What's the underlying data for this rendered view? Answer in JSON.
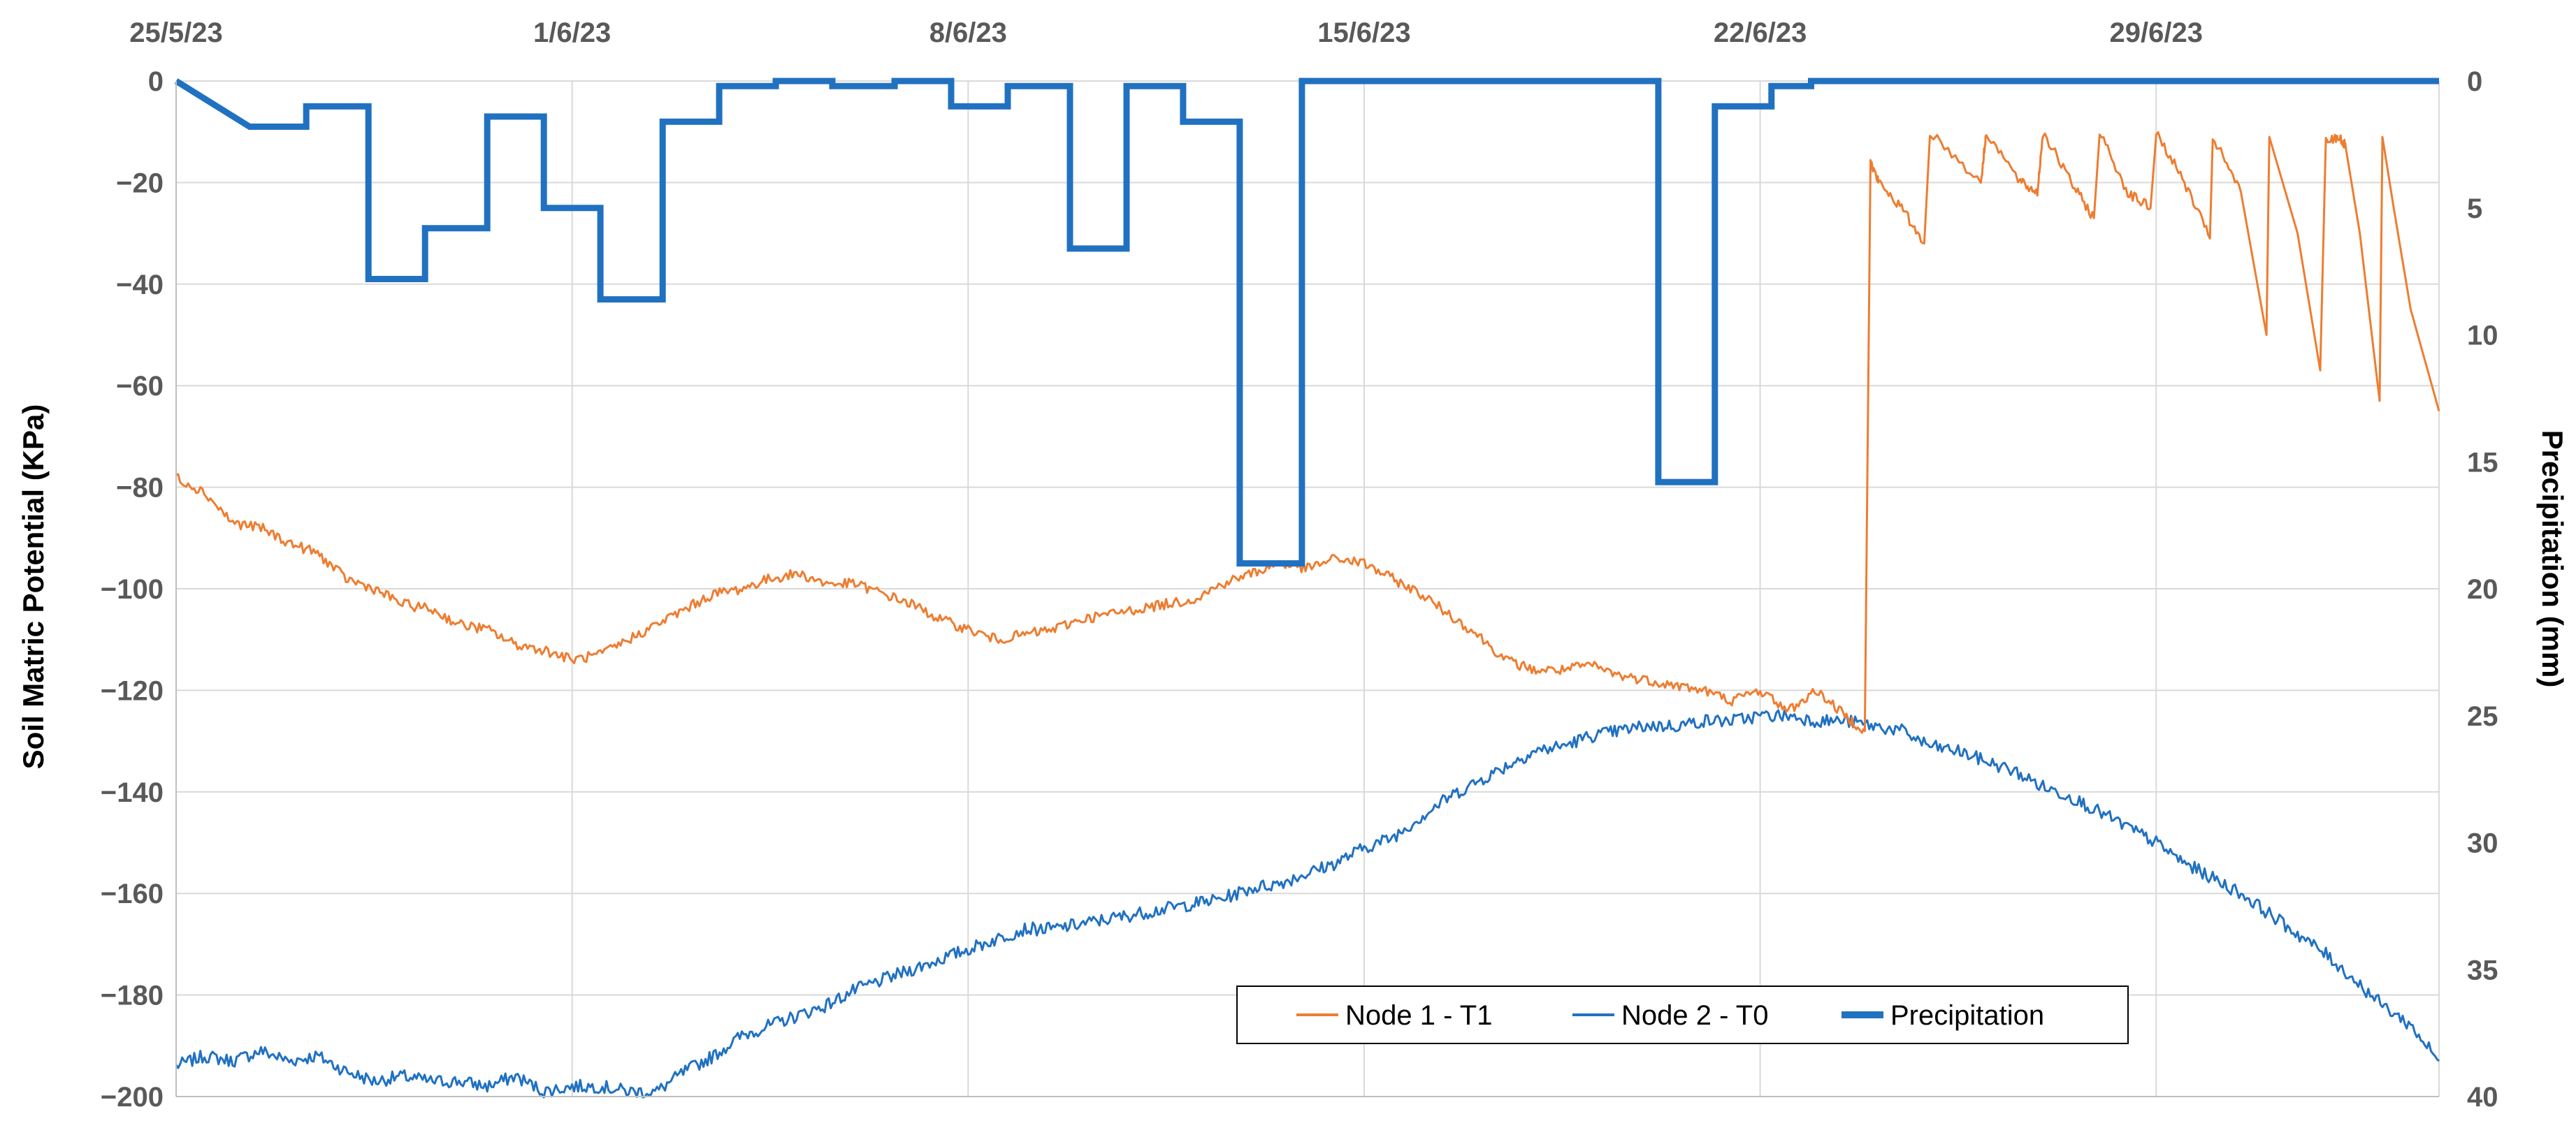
{
  "chart_data": {
    "type": "line",
    "title": "",
    "ylabel": "Soil Matric Potential (KPa)",
    "y2label": "Precipitation (mm)",
    "x_tick_labels": [
      "25/5/23",
      "1/6/23",
      "8/6/23",
      "15/6/23",
      "22/6/23",
      "29/6/23"
    ],
    "x_range_days": [
      25.0,
      65.0
    ],
    "ylim": [
      -200,
      0
    ],
    "y_ticks": [
      0,
      -20,
      -40,
      -60,
      -80,
      -100,
      -120,
      -140,
      -160,
      -180,
      -200
    ],
    "y2lim": [
      0,
      40
    ],
    "y2_ticks": [
      0,
      5,
      10,
      15,
      20,
      25,
      30,
      35,
      40
    ],
    "y2_inverted": true,
    "grid": true,
    "legend_position": "bottom-center",
    "colors": {
      "node1": "#ED7D31",
      "node2": "#2171C1",
      "precip": "#2171C1"
    },
    "series": [
      {
        "name": "Node 1 - T1",
        "x_day": [
          25.0,
          25.5,
          26.0,
          26.5,
          27.0,
          27.5,
          28.0,
          28.5,
          29.0,
          29.5,
          30.0,
          30.5,
          31.0,
          31.5,
          32.0,
          32.5,
          33.0,
          33.5,
          34.0,
          34.5,
          35.0,
          35.5,
          36.0,
          36.5,
          37.0,
          37.5,
          38.0,
          38.5,
          39.0,
          39.5,
          40.0,
          40.5,
          41.0,
          41.5,
          42.0,
          42.5,
          43.0,
          43.5,
          44.0,
          44.5,
          45.0,
          45.5,
          46.0,
          46.5,
          47.0,
          47.5,
          48.0,
          48.5,
          49.0,
          49.5,
          50.0,
          50.5,
          51.0,
          51.5,
          52.0,
          52.5,
          53.0,
          53.5,
          54.0,
          54.5,
          54.85,
          54.95,
          55.1,
          55.5,
          55.9,
          56.0,
          56.9,
          57.0,
          57.6,
          57.9,
          58.0,
          58.5,
          58.9,
          59.0,
          59.5,
          59.9,
          60.0,
          60.5,
          60.95,
          61.0,
          61.5,
          61.95,
          62.0,
          62.5,
          62.9,
          63.0,
          63.25,
          63.35,
          63.6,
          63.95,
          64.0,
          64.2,
          64.5,
          65.0
        ],
        "y": [
          -78,
          -81,
          -87,
          -88,
          -91,
          -93,
          -98,
          -100,
          -103,
          -104,
          -107,
          -108,
          -111,
          -112,
          -114,
          -113,
          -110,
          -107,
          -104,
          -101,
          -100,
          -98,
          -97,
          -99,
          -99,
          -101,
          -103,
          -106,
          -108,
          -110,
          -109,
          -108,
          -106,
          -105,
          -104,
          -103,
          -102,
          -99,
          -97,
          -95,
          -96,
          -94,
          -95,
          -98,
          -101,
          -105,
          -109,
          -114,
          -116,
          -116,
          -115,
          -117,
          -118,
          -119,
          -120,
          -122,
          -120,
          -124,
          -120,
          -125,
          -128,
          -16,
          -20,
          -25,
          -32,
          -10,
          -20,
          -10,
          -20,
          -22,
          -10,
          -20,
          -27,
          -10,
          -22,
          -25,
          -10,
          -20,
          -31,
          -11,
          -22,
          -50,
          -11,
          -30,
          -57,
          -12,
          -11,
          -13,
          -30,
          -63,
          -11,
          -25,
          -45,
          -65
        ]
      },
      {
        "name": "Node 2 - T0",
        "x_day": [
          25.0,
          25.5,
          26.0,
          26.5,
          27.0,
          27.5,
          28.0,
          28.5,
          29.0,
          29.5,
          30.0,
          30.5,
          31.0,
          31.5,
          32.0,
          32.5,
          33.0,
          33.5,
          34.0,
          34.5,
          35.0,
          35.5,
          36.0,
          36.5,
          37.0,
          37.5,
          38.0,
          38.5,
          39.0,
          39.5,
          40.0,
          40.5,
          41.0,
          41.5,
          42.0,
          42.5,
          43.0,
          43.5,
          44.0,
          44.5,
          45.0,
          45.5,
          46.0,
          46.5,
          47.0,
          47.5,
          48.0,
          48.5,
          49.0,
          49.5,
          50.0,
          50.5,
          51.0,
          51.5,
          52.0,
          52.5,
          53.0,
          53.5,
          54.0,
          54.5,
          55.0,
          55.5,
          56.0,
          56.5,
          57.0,
          57.5,
          58.0,
          58.5,
          59.0,
          59.5,
          60.0,
          60.5,
          61.0,
          61.5,
          62.0,
          62.5,
          63.0,
          63.5,
          64.0,
          64.5,
          65.0
        ],
        "y": [
          -194,
          -192,
          -193,
          -191,
          -193,
          -192,
          -195,
          -197,
          -196,
          -197,
          -197,
          -198,
          -196,
          -199,
          -198,
          -198,
          -199,
          -199,
          -195,
          -192,
          -188,
          -186,
          -184,
          -182,
          -179,
          -177,
          -175,
          -173,
          -171,
          -169,
          -167,
          -167,
          -166,
          -165,
          -164,
          -163,
          -162,
          -161,
          -159,
          -158,
          -156,
          -154,
          -151,
          -149,
          -145,
          -141,
          -138,
          -135,
          -132,
          -131,
          -129,
          -128,
          -127,
          -127,
          -126,
          -126,
          -125,
          -125,
          -126,
          -126,
          -127,
          -128,
          -131,
          -132,
          -134,
          -136,
          -139,
          -141,
          -144,
          -147,
          -150,
          -154,
          -157,
          -160,
          -164,
          -168,
          -172,
          -177,
          -182,
          -186,
          -193
        ]
      },
      {
        "name": "Precipitation",
        "bars_mm": [
          {
            "start": 26.3,
            "end": 27.3,
            "value": 1.8
          },
          {
            "start": 27.3,
            "end": 28.4,
            "value": 1.0
          },
          {
            "start": 28.4,
            "end": 29.4,
            "value": 7.8
          },
          {
            "start": 29.4,
            "end": 30.5,
            "value": 5.8
          },
          {
            "start": 30.5,
            "end": 31.5,
            "value": 1.4
          },
          {
            "start": 31.5,
            "end": 32.5,
            "value": 5.0
          },
          {
            "start": 32.5,
            "end": 33.6,
            "value": 8.6
          },
          {
            "start": 33.6,
            "end": 34.6,
            "value": 1.6
          },
          {
            "start": 34.6,
            "end": 35.6,
            "value": 0.2
          },
          {
            "start": 35.6,
            "end": 36.6,
            "value": 0.0
          },
          {
            "start": 36.6,
            "end": 37.7,
            "value": 0.2
          },
          {
            "start": 37.7,
            "end": 38.7,
            "value": 0.0
          },
          {
            "start": 38.7,
            "end": 39.7,
            "value": 1.0
          },
          {
            "start": 39.7,
            "end": 40.8,
            "value": 0.2
          },
          {
            "start": 40.8,
            "end": 41.8,
            "value": 6.6
          },
          {
            "start": 41.8,
            "end": 42.8,
            "value": 0.2
          },
          {
            "start": 42.8,
            "end": 43.8,
            "value": 1.6
          },
          {
            "start": 43.8,
            "end": 44.9,
            "value": 19.0
          },
          {
            "start": 44.9,
            "end": 51.2,
            "value": 0.0
          },
          {
            "start": 51.2,
            "end": 52.2,
            "value": 15.8
          },
          {
            "start": 52.2,
            "end": 53.2,
            "value": 1.0
          },
          {
            "start": 53.2,
            "end": 53.9,
            "value": 0.2
          },
          {
            "start": 53.9,
            "end": 65.0,
            "value": 0.0
          }
        ]
      }
    ]
  }
}
